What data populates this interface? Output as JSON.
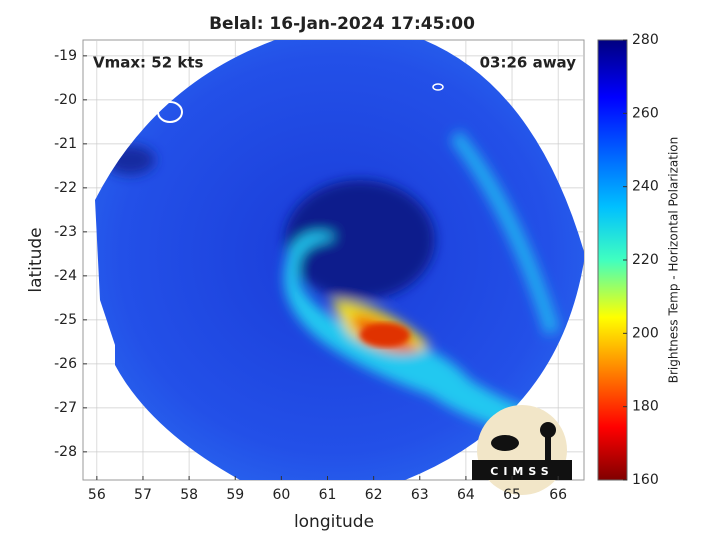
{
  "chart_data": {
    "type": "image",
    "title": "Belal: 16-Jan-2024 17:45:00",
    "xlabel": "longitude",
    "ylabel": "latitude",
    "annotations": [
      "Vmax: 52 kts",
      "03:26 away"
    ],
    "xlim": [
      55.7,
      66.56
    ],
    "xticks": [
      56,
      57,
      58,
      59,
      60,
      61,
      62,
      63,
      64,
      65,
      66
    ],
    "ylim": [
      -28.64,
      -18.64
    ],
    "yticks": [
      -28,
      -27,
      -26,
      -25,
      -24,
      -23,
      -22,
      -21,
      -20,
      -19
    ],
    "grid": true,
    "colorbar": {
      "label": "Brightness Temp - Horizontal Polarization",
      "lim": [
        160,
        280
      ],
      "ticks": [
        160,
        180,
        200,
        220,
        240,
        260,
        280
      ]
    },
    "logo": "CIMSS"
  }
}
